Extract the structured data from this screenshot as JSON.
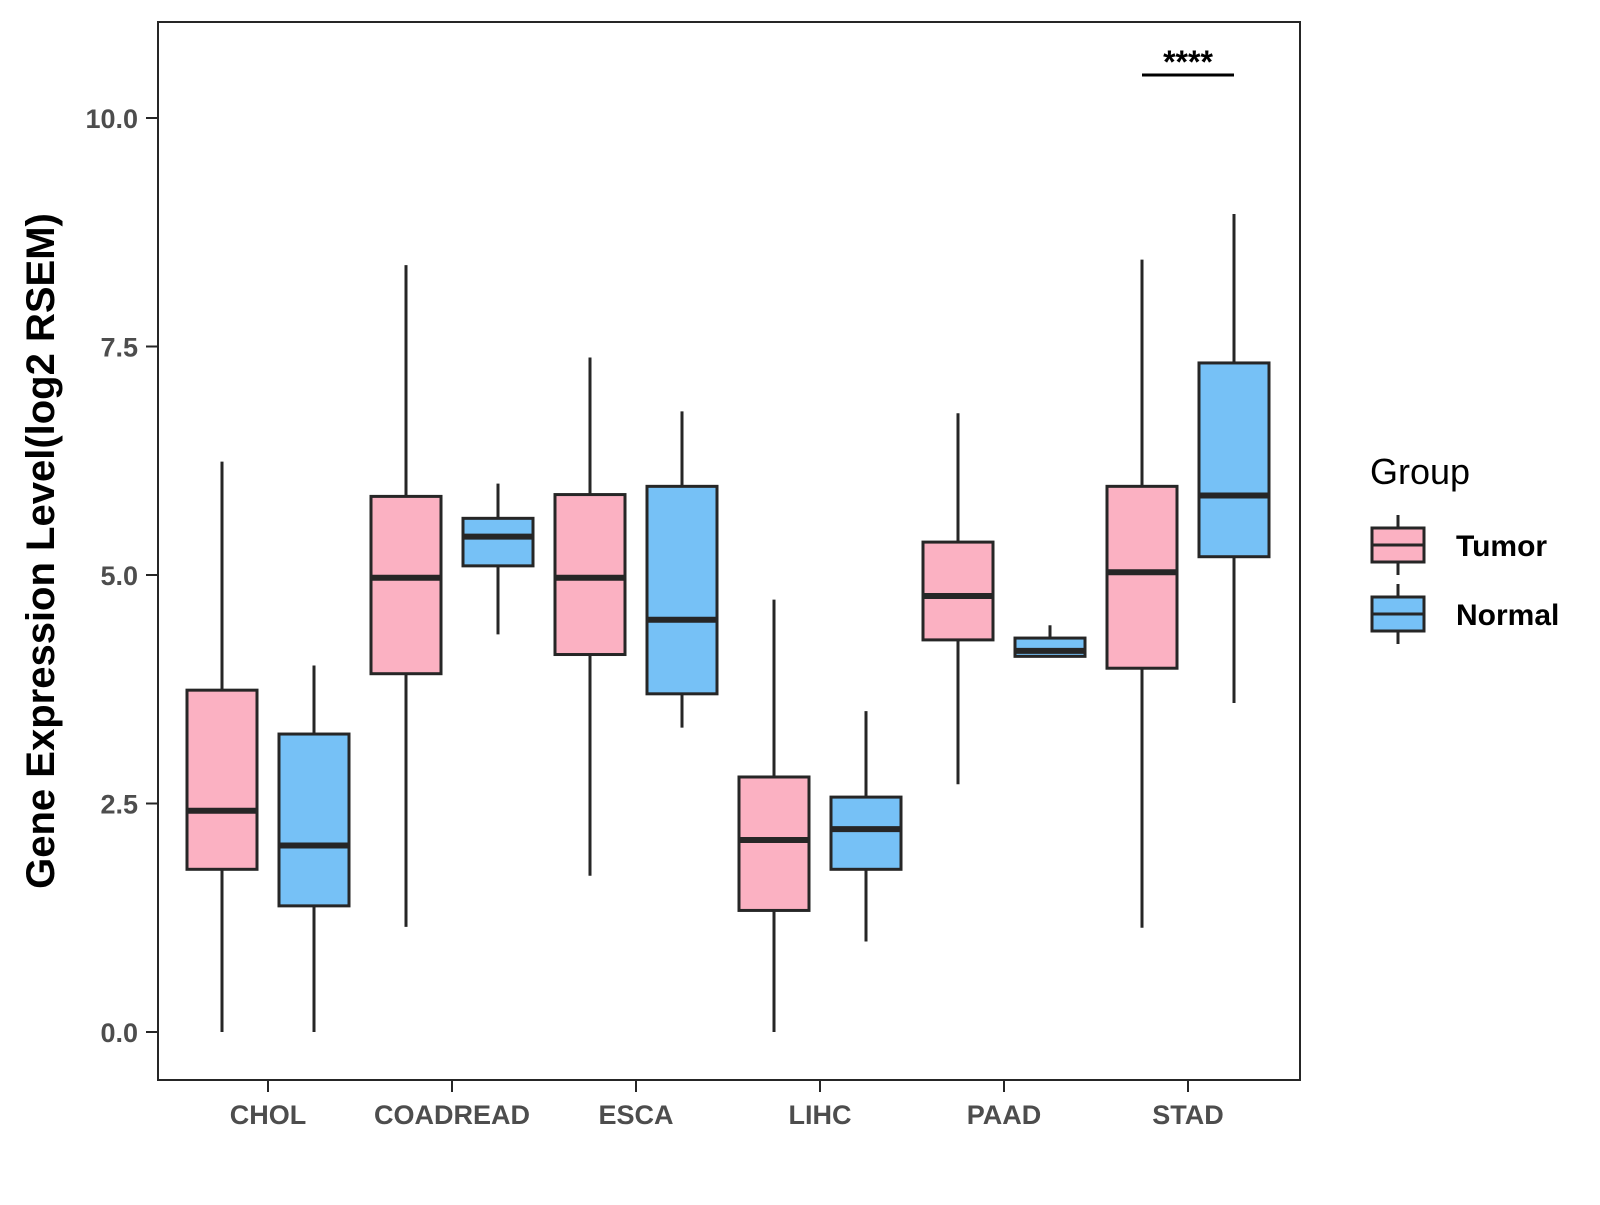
{
  "chart_data": {
    "type": "boxplot",
    "title": "",
    "xlabel": "",
    "ylabel": "Gene Expression Level(log2 RSEM)",
    "ylim": [
      -0.5,
      10.75
    ],
    "yticks": [
      {
        "value": 0,
        "label": "0.0"
      },
      {
        "value": 2.5,
        "label": "2.5"
      },
      {
        "value": 5,
        "label": "5.0"
      },
      {
        "value": 7.5,
        "label": "7.5"
      },
      {
        "value": 10,
        "label": "10.0"
      }
    ],
    "categories": [
      "CHOL",
      "COADREAD",
      "ESCA",
      "LIHC",
      "PAAD",
      "STAD"
    ],
    "grid": false,
    "legend": {
      "title": "Group",
      "position": "right",
      "entries": [
        {
          "name": "Tumor",
          "color": "#fbb1c2"
        },
        {
          "name": "Normal",
          "color": "#76c1f6"
        }
      ]
    },
    "series": [
      {
        "name": "Tumor",
        "color": "#fbb1c2",
        "boxes": [
          {
            "category": "CHOL",
            "min": 0.0,
            "q1": 1.78,
            "median": 2.42,
            "q3": 3.74,
            "max": 6.24
          },
          {
            "category": "COADREAD",
            "min": 1.15,
            "q1": 3.92,
            "median": 4.97,
            "q3": 5.86,
            "max": 8.39
          },
          {
            "category": "ESCA",
            "min": 1.71,
            "q1": 4.13,
            "median": 4.97,
            "q3": 5.88,
            "max": 7.38
          },
          {
            "category": "LIHC",
            "min": 0.0,
            "q1": 1.33,
            "median": 2.1,
            "q3": 2.79,
            "max": 4.73
          },
          {
            "category": "PAAD",
            "min": 2.71,
            "q1": 4.29,
            "median": 4.77,
            "q3": 5.36,
            "max": 6.77
          },
          {
            "category": "STAD",
            "min": 1.14,
            "q1": 3.98,
            "median": 5.03,
            "q3": 5.97,
            "max": 8.45
          }
        ]
      },
      {
        "name": "Normal",
        "color": "#76c1f6",
        "boxes": [
          {
            "category": "CHOL",
            "min": 0.0,
            "q1": 1.38,
            "median": 2.04,
            "q3": 3.26,
            "max": 4.01
          },
          {
            "category": "COADREAD",
            "min": 4.35,
            "q1": 5.1,
            "median": 5.42,
            "q3": 5.62,
            "max": 6.0
          },
          {
            "category": "ESCA",
            "min": 3.33,
            "q1": 3.7,
            "median": 4.51,
            "q3": 5.97,
            "max": 6.79
          },
          {
            "category": "LIHC",
            "min": 0.99,
            "q1": 1.78,
            "median": 2.22,
            "q3": 2.57,
            "max": 3.51
          },
          {
            "category": "PAAD",
            "min": 4.11,
            "q1": 4.11,
            "median": 4.17,
            "q3": 4.31,
            "max": 4.45
          },
          {
            "category": "STAD",
            "min": 3.6,
            "q1": 5.2,
            "median": 5.87,
            "q3": 7.32,
            "max": 8.95
          }
        ]
      }
    ],
    "annotations": [
      {
        "category": "STAD",
        "text": "****",
        "y": 10.47
      }
    ]
  }
}
